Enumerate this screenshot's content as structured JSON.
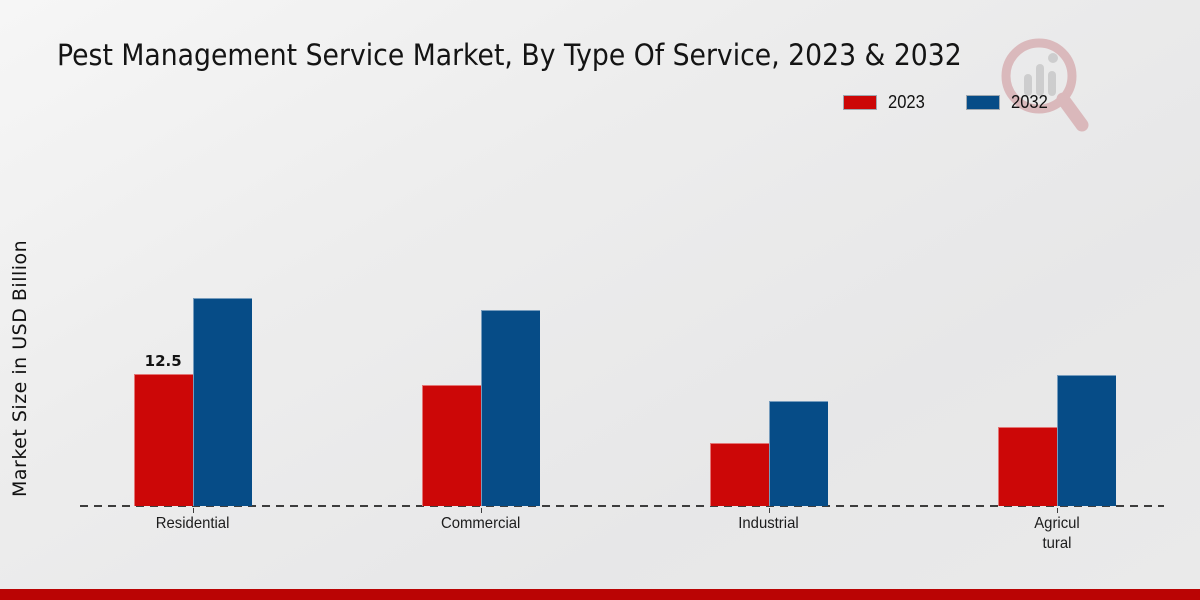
{
  "title": "Pest Management Service Market, By Type Of Service, 2023 & 2032",
  "y_axis_label": "Market Size in USD Billion",
  "watermark": {
    "icon": "magnifier-bar-chart-logo",
    "red": "#b84a52",
    "gray": "#8e8e8e"
  },
  "legend": {
    "position": "top-right",
    "items": [
      {
        "label": "2023",
        "color": "#cc0707"
      },
      {
        "label": "2032",
        "color": "#064c87"
      }
    ]
  },
  "chart_data": {
    "type": "bar",
    "title": "Pest Management Service Market, By Type Of Service, 2023 & 2032",
    "xlabel": "",
    "ylabel": "Market Size in USD Billion",
    "unit": "USD Billion",
    "categories": [
      "Residential",
      "Commercial",
      "Industrial",
      "Agricul tural"
    ],
    "series": [
      {
        "name": "2023",
        "color": "#cc0707",
        "values": [
          12.5,
          11.5,
          6.0,
          7.5
        ]
      },
      {
        "name": "2032",
        "color": "#064c87",
        "values": [
          19.7,
          18.6,
          10.0,
          12.4
        ]
      }
    ],
    "ylim": [
      0,
      29
    ],
    "grid": false,
    "baseline_style": "dashed",
    "legend_position": "top-right",
    "data_labels": [
      {
        "series": "2023",
        "category": "Residential",
        "text": "12.5"
      }
    ]
  },
  "footer": {
    "band_color": "#ba0404"
  }
}
